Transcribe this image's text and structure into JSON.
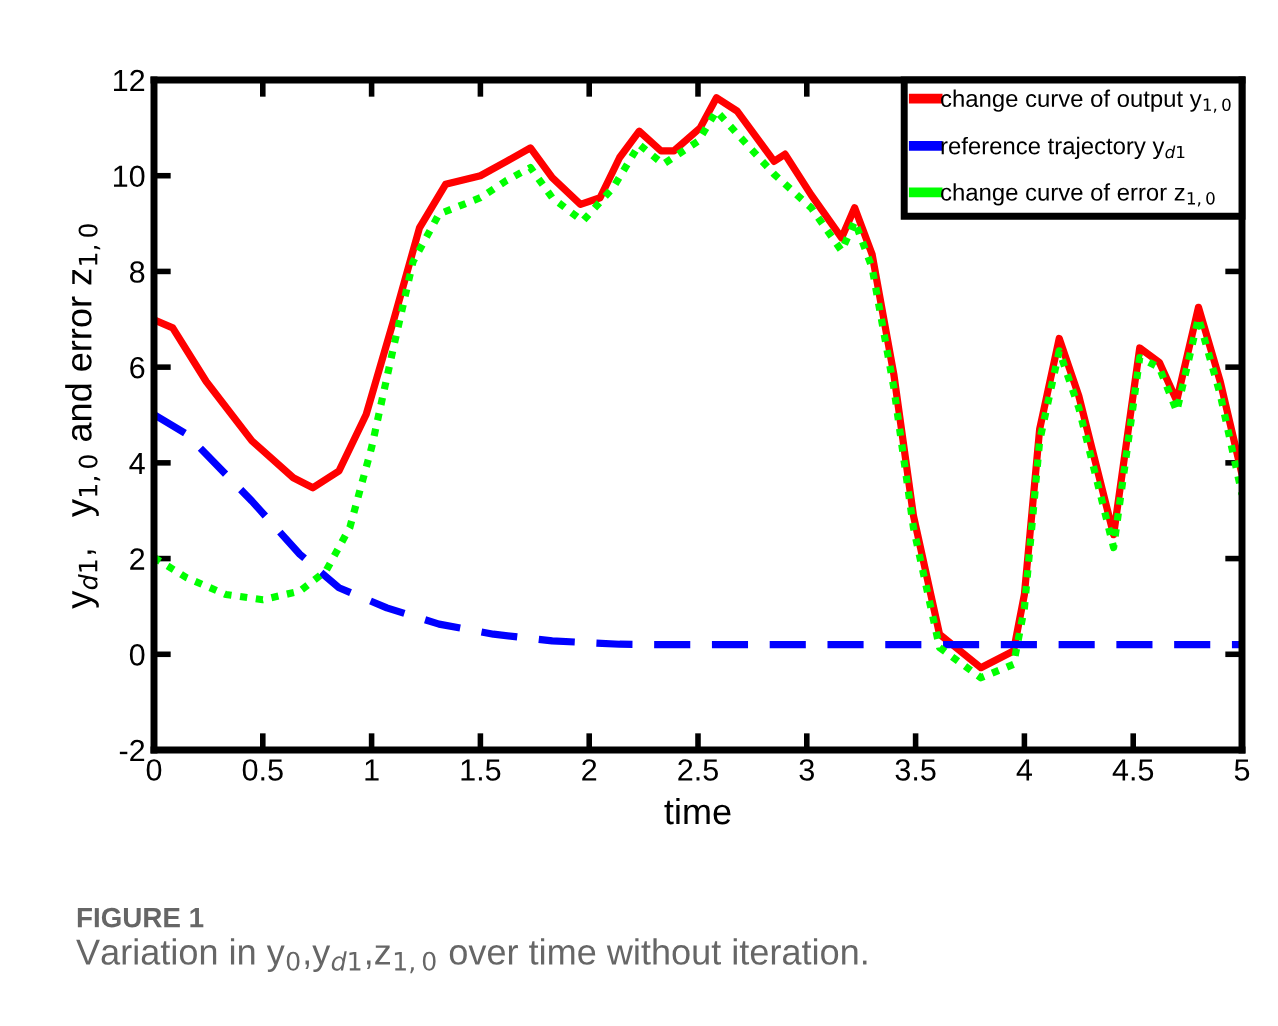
{
  "chart_data": {
    "type": "line",
    "xlabel": "time",
    "ylabel": "y$_{d1}$,   y$_{1,0}$ and error z$_{1,0}$",
    "xlim": [
      0,
      5
    ],
    "ylim": [
      -2,
      12
    ],
    "xticks": [
      0,
      0.5,
      1,
      1.5,
      2,
      2.5,
      3,
      3.5,
      4,
      4.5,
      5
    ],
    "yticks": [
      -2,
      0,
      2,
      4,
      6,
      8,
      10,
      12
    ],
    "grid": false,
    "legend": "top right",
    "marker": "none",
    "series": [
      {
        "name": "change curve of output y$_{1,0}$",
        "color": "#ff0000",
        "line_style": "solid",
        "x": [
          0,
          0.086,
          0.24,
          0.45,
          0.64,
          0.73,
          0.85,
          0.975,
          1.1,
          1.22,
          1.34,
          1.5,
          1.62,
          1.73,
          1.83,
          1.96,
          2.05,
          2.14,
          2.23,
          2.33,
          2.39,
          2.51,
          2.585,
          2.68,
          2.85,
          2.9,
          3.02,
          3.16,
          3.22,
          3.3,
          3.4,
          3.49,
          3.61,
          3.8,
          3.95,
          4.0,
          4.07,
          4.16,
          4.25,
          4.41,
          4.53,
          4.62,
          4.7,
          4.8,
          4.9,
          5.0
        ],
        "values": [
          6.99,
          6.82,
          5.7,
          4.46,
          3.69,
          3.48,
          3.83,
          5.01,
          6.96,
          8.91,
          9.82,
          10.0,
          10.3,
          10.58,
          9.96,
          9.4,
          9.54,
          10.38,
          10.93,
          10.52,
          10.52,
          11.0,
          11.63,
          11.35,
          10.3,
          10.45,
          9.6,
          8.7,
          9.33,
          8.36,
          5.85,
          2.9,
          0.42,
          -0.28,
          0.07,
          1.25,
          4.7,
          6.6,
          5.4,
          2.5,
          6.4,
          6.1,
          5.3,
          7.25,
          5.7,
          3.76
        ]
      },
      {
        "name": "reference trajectory y$_{d1}$",
        "color": "#0000ff",
        "line_style": "dashed",
        "x": [
          0,
          0.15,
          0.45,
          0.67,
          0.85,
          1.07,
          1.31,
          1.56,
          1.83,
          2.14,
          2.39,
          5.0
        ],
        "values": [
          5.01,
          4.6,
          3.2,
          2.09,
          1.39,
          0.97,
          0.63,
          0.42,
          0.28,
          0.21,
          0.2,
          0.2
        ]
      },
      {
        "name": "change curve of error z$_{1,0}$",
        "color": "#00ff00",
        "line_style": "dotted",
        "x": [
          0,
          0.15,
          0.33,
          0.5,
          0.67,
          0.79,
          0.9,
          1.0,
          1.1,
          1.19,
          1.31,
          1.5,
          1.62,
          1.73,
          1.83,
          1.97,
          2.11,
          2.23,
          2.34,
          2.5,
          2.585,
          2.85,
          3.02,
          3.16,
          3.22,
          3.3,
          3.4,
          3.49,
          3.61,
          3.8,
          3.95,
          4.0,
          4.07,
          4.16,
          4.25,
          4.41,
          4.53,
          4.62,
          4.7,
          4.8,
          4.9,
          5.0
        ],
        "values": [
          2.02,
          1.6,
          1.25,
          1.14,
          1.32,
          1.74,
          2.65,
          4.32,
          6.4,
          8.2,
          9.2,
          9.54,
          9.9,
          10.17,
          9.54,
          9.05,
          9.75,
          10.65,
          10.24,
          10.72,
          11.35,
          10.03,
          9.33,
          8.43,
          9.05,
          8.08,
          5.57,
          2.65,
          0.14,
          -0.49,
          -0.21,
          0.97,
          4.46,
          6.34,
          5.15,
          2.23,
          6.2,
          5.99,
          5.08,
          7.03,
          5.43,
          3.34
        ]
      }
    ],
    "annotations": [
      "FIGURE 1",
      "Variation in y$_{0}$,y$_{d1}$,z$_{1,0}$ over time without iteration."
    ]
  }
}
